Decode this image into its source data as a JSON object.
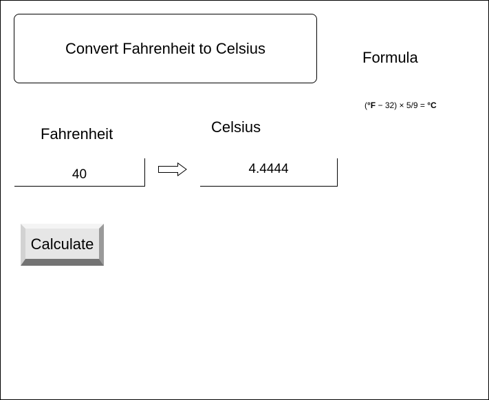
{
  "title": "Convert Fahrenheit to Celsius",
  "formula": {
    "heading": "Formula",
    "open": "(",
    "unit_f": "°F",
    "middle": " − 32) × 5/9 = ",
    "unit_c": "°C"
  },
  "fahrenheit": {
    "label": "Fahrenheit",
    "value": "40"
  },
  "celsius": {
    "label": "Celsius",
    "value": "4.4444"
  },
  "calculate_button": {
    "label": "Calculate"
  },
  "arrow_icon": "right-arrow-icon",
  "colors": {
    "border": "#000000",
    "button_face": "#e6e6e6",
    "button_light": "#f2f2f2",
    "button_dark": "#767676",
    "button_mid": "#b0b0b0"
  }
}
